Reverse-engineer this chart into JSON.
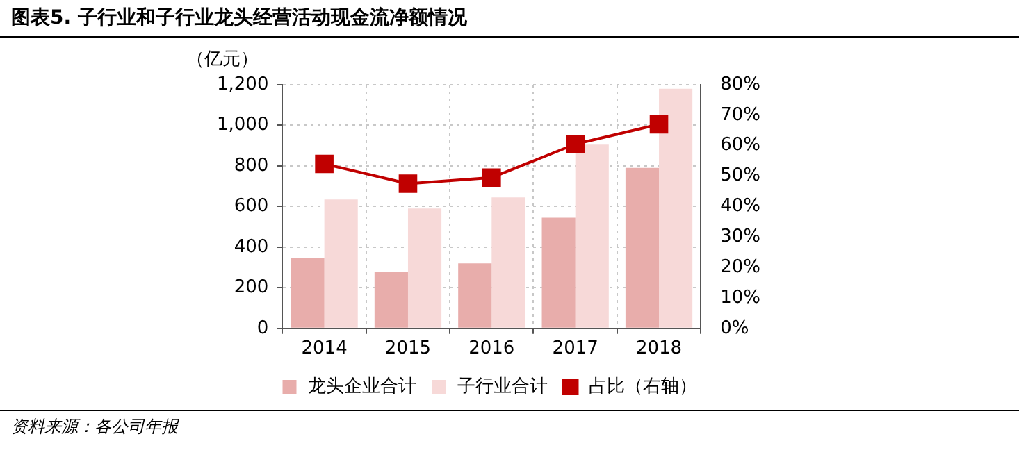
{
  "chart_data": {
    "type": "bar",
    "title": "图表5. 子行业和子行业龙头经营活动现金流净额情况",
    "ylabel": "（亿元）",
    "categories": [
      "2014",
      "2015",
      "2016",
      "2017",
      "2018"
    ],
    "series": [
      {
        "name": "龙头企业合计",
        "color": "#e8adab",
        "values": [
          345,
          280,
          320,
          545,
          790
        ]
      },
      {
        "name": "子行业合计",
        "color": "#f7d9d8",
        "values": [
          635,
          590,
          645,
          905,
          1180
        ]
      },
      {
        "name": "占比（右轴）",
        "type": "line",
        "axis": "y2",
        "color": "#c00000",
        "values": [
          54,
          47.5,
          49.5,
          60.5,
          67
        ]
      }
    ],
    "ylim": [
      0,
      1200
    ],
    "yticks": [
      0,
      {
        "value": 200,
        "label": "200"
      },
      {
        "value": 400,
        "label": "400"
      },
      {
        "value": 600,
        "label": "600"
      },
      {
        "value": 800,
        "label": "800"
      },
      {
        "value": 1000,
        "label": "1,000"
      },
      {
        "value": 1200,
        "label": "1,200"
      }
    ],
    "y2lim": [
      0,
      80
    ],
    "y2ticks": [
      {
        "value": 0,
        "label": "0%"
      },
      {
        "value": 10,
        "label": "10%"
      },
      {
        "value": 20,
        "label": "20%"
      },
      {
        "value": 30,
        "label": "30%"
      },
      {
        "value": 40,
        "label": "40%"
      },
      {
        "value": 50,
        "label": "50%"
      },
      {
        "value": 60,
        "label": "60%"
      },
      {
        "value": 70,
        "label": "70%"
      },
      {
        "value": 80,
        "label": "80%"
      }
    ],
    "grid": true,
    "legend": "bottom",
    "marker": "square",
    "line_style": "solid",
    "annotations": [
      "资料来源：各公司年报"
    ]
  }
}
